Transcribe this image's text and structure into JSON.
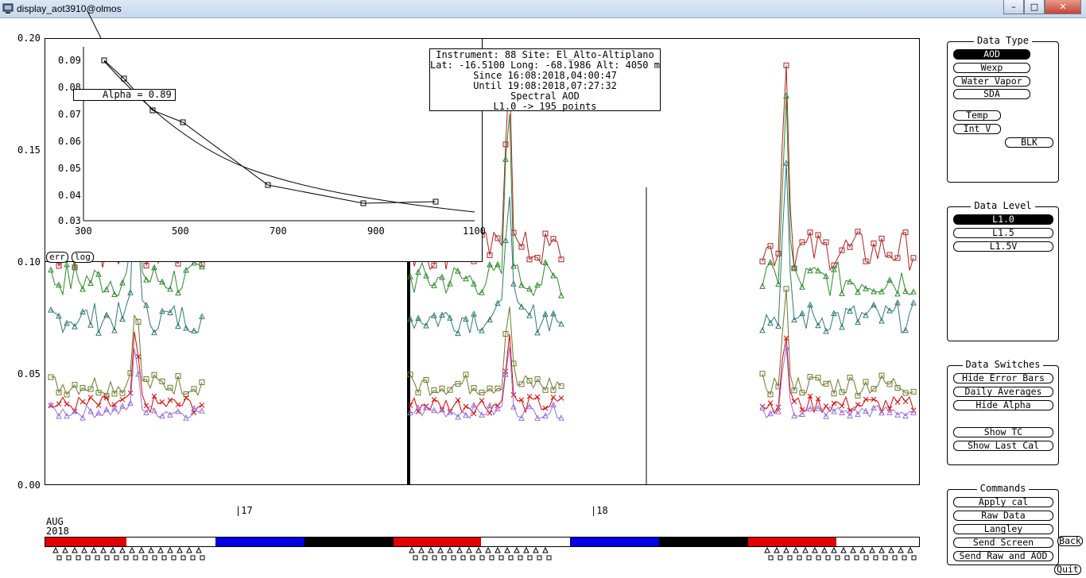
{
  "window": {
    "title": "display_aot3910@olmos",
    "buttons": {
      "minimize": "–",
      "maximize": "□",
      "close": "✕"
    }
  },
  "colors": {
    "red": "#e00000",
    "dark_red": "#b02020",
    "green": "#2a8a2a",
    "teal": "#2f7a70",
    "olive": "#6b7a2a",
    "purple": "#9a70e0",
    "brown": "#8a5a3a",
    "blue": "#0000e0"
  },
  "inset": {
    "alpha_label": "Alpha = 0.89",
    "err_button": "err",
    "log_button": "log",
    "y_ticks": [
      "0.09",
      "0.08",
      "0.07",
      "0.06",
      "0.05",
      "0.04",
      "0.03"
    ],
    "x_ticks": [
      "300",
      "500",
      "700",
      "900",
      "1100"
    ]
  },
  "info": {
    "line1": "Instrument: 88 Site: El_Alto-Altiplano",
    "line2": "Lat: -16.5100 Long: -68.1986 Alt: 4050 m",
    "line3": "Since 16:08:2018,04:00:47",
    "line4": "Until 19:08:2018,07:27:32",
    "line5": "Spectral AOD",
    "line6": "L1.0 -> 195 points"
  },
  "main_axis": {
    "y_ticks": [
      "0.20",
      "0.15",
      "0.10",
      "0.05",
      "0.00"
    ]
  },
  "time_axis": {
    "day_17": "|17",
    "day_18": "|18",
    "month": "AUG",
    "year": "2018",
    "segments": [
      "red",
      "white",
      "blue",
      "black",
      "red",
      "white",
      "blue",
      "black",
      "red",
      "white"
    ]
  },
  "data_type_panel": {
    "title": "Data Type",
    "aod": "AOD",
    "wexp": "Wexp",
    "water_vapor": "Water Vapor",
    "sda": "SDA",
    "temp": "Temp",
    "int_v": "Int V",
    "blk": "BLK",
    "selected": "AOD"
  },
  "data_level_panel": {
    "title": "Data Level",
    "l10": "L1.0",
    "l15": "L1.5",
    "l15v": "L1.5V",
    "selected": "L1.0"
  },
  "data_switches_panel": {
    "title": "Data Switches",
    "hide_error_bars": "Hide Error Bars",
    "daily_averages": "Daily Averages",
    "hide_alpha": "Hide Alpha",
    "show_tc": "Show TC",
    "show_last_cal": "Show Last Cal"
  },
  "commands_panel": {
    "title": "Commands",
    "apply_cal": "Apply cal",
    "raw_data": "Raw Data",
    "langley": "Langley",
    "send_screen": "Send Screen",
    "send_raw_and_aod": "Send Raw and AOD",
    "back": "Back",
    "quit": "Quit"
  }
}
